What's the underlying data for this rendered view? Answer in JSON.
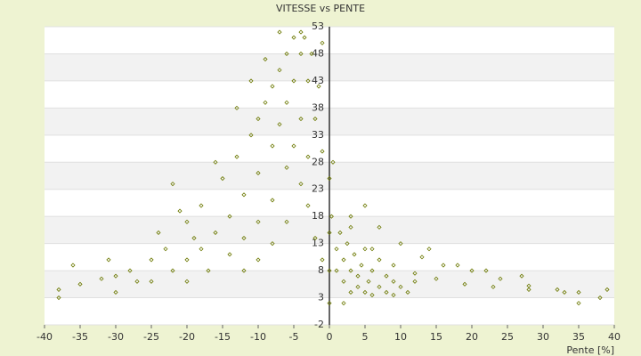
{
  "chart_data": {
    "type": "scatter",
    "title": "VITESSE vs PENTE",
    "x_label": "Pente [%]",
    "color": "#6b7800",
    "grid": true,
    "xlim": [
      -40,
      40
    ],
    "xticks": [
      -40,
      -35,
      -30,
      -25,
      -20,
      -15,
      -10,
      -5,
      0,
      5,
      10,
      15,
      20,
      25,
      30,
      35,
      40
    ],
    "ylim": [
      -2,
      53
    ],
    "yticks": [
      -2,
      3,
      8,
      13,
      18,
      23,
      28,
      33,
      38,
      43,
      48,
      53
    ],
    "x": [
      -38,
      -35,
      -32,
      -30,
      -28,
      -25,
      -23,
      -20,
      -18,
      -15,
      -13,
      -11,
      -10,
      -9,
      -8,
      -7,
      -6,
      -5,
      -30,
      -25,
      -22,
      -20,
      -18,
      -16,
      -14,
      -12,
      -10,
      -8,
      -7,
      -6,
      -5,
      -4,
      -3.5,
      -20,
      -17,
      -14,
      -12,
      -10,
      -8,
      -6,
      -5,
      -4,
      -3,
      -2.5,
      -12,
      -10,
      -8,
      -6,
      -4,
      -3,
      -2,
      -1.5,
      -1,
      -36,
      -31,
      -27,
      -24,
      -22,
      -21,
      -19,
      -16,
      -13,
      -11,
      -9,
      -7,
      -3,
      -2,
      -1,
      -1,
      -4,
      0,
      0,
      0,
      0,
      0.3,
      0.5,
      1,
      1,
      1.5,
      2,
      2,
      2.5,
      3,
      3,
      3,
      3.5,
      4,
      4,
      4.5,
      5,
      5,
      5.5,
      6,
      6,
      7,
      7,
      8,
      8,
      9,
      9,
      10,
      11,
      12,
      5,
      7,
      10,
      13,
      16,
      20,
      24,
      28,
      32,
      35,
      3,
      6,
      9,
      12,
      15,
      19,
      23,
      28,
      33,
      14,
      18,
      22,
      27,
      35,
      38,
      39,
      -38,
      2
    ],
    "values": [
      4.5,
      5.5,
      6.5,
      7,
      8,
      10,
      12,
      17,
      20,
      25,
      29,
      33,
      36,
      39,
      42,
      45,
      48,
      51,
      4,
      6,
      8,
      10,
      12,
      15,
      18,
      22,
      26,
      31,
      35,
      39,
      43,
      48,
      51,
      6,
      8,
      11,
      14,
      17,
      21,
      27,
      31,
      36,
      43,
      48,
      8,
      10,
      13,
      17,
      24,
      29,
      36,
      42,
      50,
      9,
      10,
      6,
      15,
      24,
      19,
      14,
      28,
      38,
      43,
      47,
      52,
      20,
      14,
      10,
      30,
      52,
      2,
      8,
      15,
      25,
      18,
      28,
      12,
      8,
      15,
      6,
      10,
      13,
      4,
      8,
      16,
      11,
      5,
      7,
      9,
      4,
      12,
      6,
      3.5,
      8,
      5,
      10,
      4,
      7,
      3.5,
      6,
      5,
      4,
      6,
      20,
      16,
      13,
      10.5,
      9,
      8,
      6.5,
      5.2,
      4.5,
      4,
      18,
      12,
      9,
      7.5,
      6.5,
      5.5,
      5,
      4.5,
      4,
      12,
      9,
      8,
      7,
      2,
      3,
      4.5,
      3,
      2
    ]
  }
}
